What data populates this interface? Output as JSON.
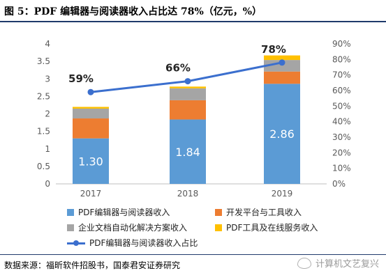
{
  "title": "图 5：PDF 编辑器与阅读器收入占比达 78%（亿元，%）",
  "source": "数据来源：福昕软件招股书，国泰君安证券研究",
  "watermark": "计算机文艺复兴",
  "colors": {
    "editor": "#5b9bd5",
    "platform": "#ed7d31",
    "enterprise": "#a5a5a5",
    "tools": "#ffc000",
    "line": "#3b6fce"
  },
  "chart_data": {
    "type": "bar",
    "stacked": true,
    "categories": [
      "2017",
      "2018",
      "2019"
    ],
    "series": [
      {
        "name": "PDF编辑器与阅读器收入",
        "values": [
          1.3,
          1.84,
          2.86
        ],
        "color": "#5b9bd5",
        "data_labels": [
          "1.30",
          "1.84",
          "2.86"
        ]
      },
      {
        "name": "开发平台与工具收入",
        "values": [
          0.57,
          0.55,
          0.35
        ],
        "color": "#ed7d31"
      },
      {
        "name": "企业文档自动化解决方案收入",
        "values": [
          0.28,
          0.34,
          0.33
        ],
        "color": "#a5a5a5"
      },
      {
        "name": "PDF工具及在线服务收入",
        "values": [
          0.05,
          0.05,
          0.13
        ],
        "color": "#ffc000"
      }
    ],
    "line_series": {
      "name": "PDF编辑器与阅读器收入占比",
      "values": [
        59,
        66,
        78
      ],
      "labels": [
        "59%",
        "66%",
        "78%"
      ],
      "color": "#3b6fce",
      "axis": "right"
    },
    "ylim": [
      0,
      4
    ],
    "yticks": [
      "0",
      "0.5",
      "1",
      "1.5",
      "2",
      "2.5",
      "3",
      "3.5",
      "4"
    ],
    "y2lim": [
      0,
      90
    ],
    "y2ticks": [
      "0%",
      "10%",
      "20%",
      "30%",
      "40%",
      "50%",
      "60%",
      "70%",
      "80%",
      "90%"
    ],
    "grid": false,
    "legend_position": "bottom"
  }
}
